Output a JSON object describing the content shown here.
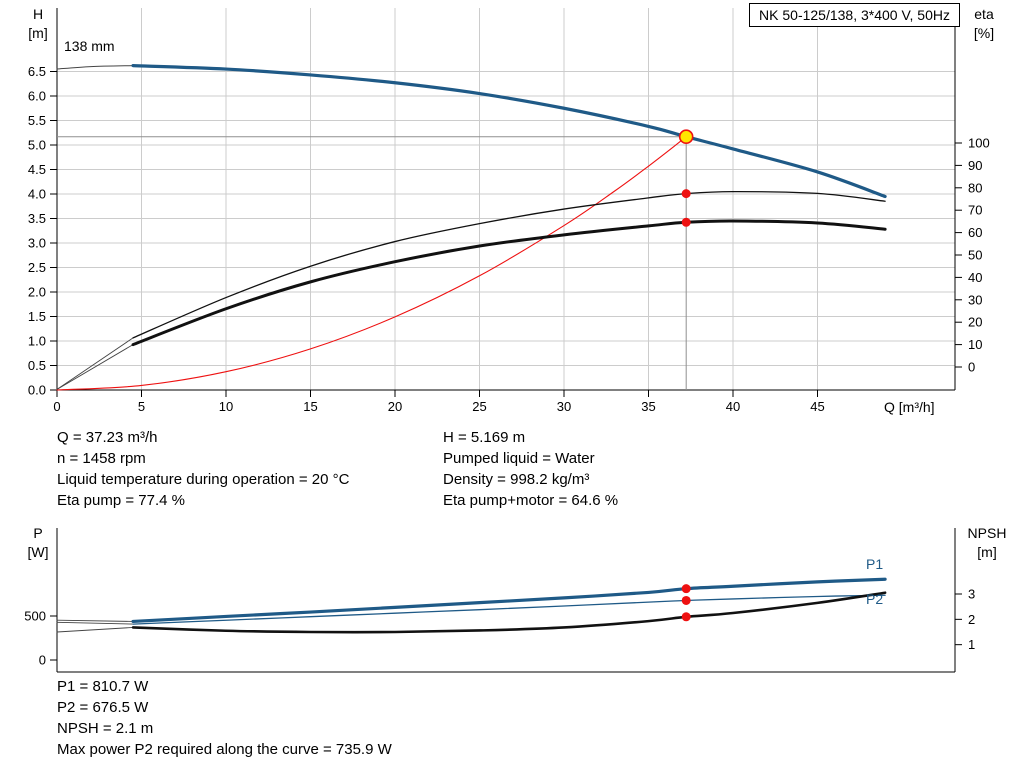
{
  "colors": {
    "curve_blue": "#1f5a87",
    "red": "#ee1111",
    "yellow": "#ffe600",
    "grid": "#cccccc",
    "axis": "#000000",
    "crosshair": "#8f8f8f",
    "ext_line": "#444444"
  },
  "info_left": [
    "Q = 37.23 m³/h",
    "n = 1458 rpm",
    "Liquid temperature during operation = 20 °C",
    "Eta pump = 77.4 %"
  ],
  "info_right": [
    "H = 5.169 m",
    "Pumped liquid = Water",
    "Density = 998.2 kg/m³",
    "Eta pump+motor = 64.6 %"
  ],
  "bottom_info": [
    "P1 = 810.7 W",
    "P2 = 676.5 W",
    "NPSH = 2.1 m",
    "Max power P2 required along the curve = 735.9 W"
  ],
  "chart_data": [
    {
      "type": "line",
      "title": "NK 50-125/138, 3*400 V, 50Hz",
      "impeller_label": "138 mm",
      "xlabel": "Q [m³/h]",
      "ylabel_left": [
        "H",
        "[m]"
      ],
      "ylabel_right": [
        "eta",
        "[%]"
      ],
      "xlim": [
        0,
        53.1
      ],
      "ylim_left": [
        0,
        7.8
      ],
      "ylim_right": [
        0,
        100
      ],
      "grid": true,
      "x_ticks": {
        "values": [
          0,
          5,
          10,
          15,
          20,
          25,
          30,
          35,
          40,
          45
        ],
        "labels": [
          "0",
          "5",
          "10",
          "15",
          "20",
          "25",
          "30",
          "35",
          "40",
          "45"
        ]
      },
      "y_ticks_left": {
        "values": [
          0,
          0.5,
          1,
          1.5,
          2,
          2.5,
          3,
          3.5,
          4,
          4.5,
          5,
          5.5,
          6,
          6.5
        ],
        "labels": [
          "0.0",
          "0.5",
          "1.0",
          "1.5",
          "2.0",
          "2.5",
          "3.0",
          "3.5",
          "4.0",
          "4.5",
          "5.0",
          "5.5",
          "6.0",
          "6.5"
        ]
      },
      "y_ticks_right": {
        "values": [
          0,
          10,
          20,
          30,
          40,
          50,
          60,
          70,
          80,
          90,
          100
        ],
        "labels": [
          "0",
          "10",
          "20",
          "30",
          "40",
          "50",
          "60",
          "70",
          "80",
          "90",
          "100"
        ]
      },
      "series": [
        {
          "name": "head-curve-ext",
          "axis": "H",
          "color": "ext",
          "width": 1,
          "x": [
            0,
            2,
            4.5
          ],
          "y": [
            6.55,
            6.6,
            6.62
          ]
        },
        {
          "name": "eta-pump-ext",
          "axis": "eta",
          "color": "ext",
          "width": 0.9,
          "x": [
            0,
            4.5
          ],
          "y": [
            -10,
            13
          ]
        },
        {
          "name": "eta-pump-motor-ext",
          "axis": "eta",
          "color": "ext",
          "width": 0.9,
          "x": [
            0,
            4.5
          ],
          "y": [
            -10,
            10
          ]
        },
        {
          "name": "system-curve",
          "axis": "H",
          "color": "red",
          "width": 1.1,
          "x": [
            0,
            5,
            10,
            15,
            20,
            25,
            30,
            33,
            35,
            36.5,
            37.23
          ],
          "y": [
            0,
            0.093,
            0.373,
            0.839,
            1.492,
            2.331,
            3.356,
            4.061,
            4.568,
            4.968,
            5.169
          ]
        },
        {
          "name": "head-curve-138mm",
          "axis": "H",
          "color": "blue",
          "width": 3.2,
          "x": [
            4.5,
            10,
            15,
            20,
            25,
            30,
            35,
            37.23,
            40,
            45,
            49
          ],
          "y": [
            6.62,
            6.55,
            6.43,
            6.27,
            6.05,
            5.75,
            5.38,
            5.169,
            4.92,
            4.45,
            3.95
          ]
        },
        {
          "name": "eta-pump-curve",
          "axis": "eta",
          "color": "#111111",
          "width": 1.3,
          "x": [
            4.5,
            10,
            15,
            20,
            25,
            30,
            35,
            37.23,
            40,
            45,
            49
          ],
          "y": [
            13,
            31,
            45,
            56,
            64,
            70.5,
            75.5,
            77.4,
            78.3,
            77.5,
            74
          ]
        },
        {
          "name": "eta-pump-motor-curve",
          "axis": "eta",
          "color": "#111111",
          "width": 3,
          "x": [
            4.5,
            10,
            15,
            20,
            25,
            30,
            35,
            37.23,
            40,
            45,
            49
          ],
          "y": [
            10,
            26,
            38,
            47,
            54,
            59,
            63,
            64.6,
            65.2,
            64.3,
            61.5
          ]
        }
      ],
      "duty_point": {
        "Q": 37.23,
        "H": 5.169,
        "eta_pump": 77.4,
        "eta_pump_motor": 64.6
      }
    },
    {
      "type": "line",
      "xlabel": "",
      "ylabel_left": [
        "P",
        "[W]"
      ],
      "ylabel_right": [
        "NPSH",
        "[m]"
      ],
      "xlim": [
        0,
        53.1
      ],
      "ylim_left": [
        0,
        1500
      ],
      "ylim_right": [
        0,
        5.6
      ],
      "grid": false,
      "y_ticks_left": {
        "values": [
          0,
          500
        ],
        "labels": [
          "0",
          "500"
        ]
      },
      "y_ticks_right": {
        "values": [
          1,
          2,
          3
        ],
        "labels": [
          "1",
          "2",
          "3"
        ]
      },
      "series": [
        {
          "name": "p1-ext",
          "axis": "P",
          "color": "ext",
          "width": 0.9,
          "x": [
            0,
            4.5
          ],
          "y": [
            452,
            438
          ]
        },
        {
          "name": "p2-ext",
          "axis": "P",
          "color": "ext",
          "width": 0.9,
          "x": [
            0,
            4.5
          ],
          "y": [
            428,
            408
          ]
        },
        {
          "name": "npsh-ext",
          "axis": "N",
          "color": "ext",
          "width": 0.9,
          "x": [
            0,
            4.5
          ],
          "y": [
            1.5,
            1.68
          ]
        },
        {
          "name": "p1-curve",
          "axis": "P",
          "color": "blue",
          "width": 3.2,
          "label": "P1",
          "x": [
            4.5,
            10,
            15,
            20,
            25,
            30,
            35,
            37.23,
            40,
            45,
            49
          ],
          "y": [
            438,
            495,
            545,
            598,
            652,
            706,
            768,
            810.7,
            838,
            888,
            918
          ]
        },
        {
          "name": "p2-curve",
          "axis": "P",
          "color": "blue",
          "width": 1.3,
          "label": "P2",
          "x": [
            4.5,
            10,
            15,
            20,
            25,
            30,
            35,
            37.23,
            40,
            45,
            49
          ],
          "y": [
            408,
            452,
            492,
            532,
            572,
            614,
            658,
            676.5,
            694,
            722,
            736
          ]
        },
        {
          "name": "npsh-curve",
          "axis": "N",
          "color": "#111111",
          "width": 2.6,
          "x": [
            4.5,
            10,
            15,
            20,
            25,
            30,
            35,
            37.23,
            40,
            45,
            49
          ],
          "y": [
            1.68,
            1.55,
            1.5,
            1.5,
            1.56,
            1.68,
            1.93,
            2.1,
            2.25,
            2.65,
            3.05
          ]
        }
      ],
      "duty_point": {
        "Q": 37.23,
        "P1": 810.7,
        "P2": 676.5,
        "NPSH": 2.1
      }
    }
  ]
}
